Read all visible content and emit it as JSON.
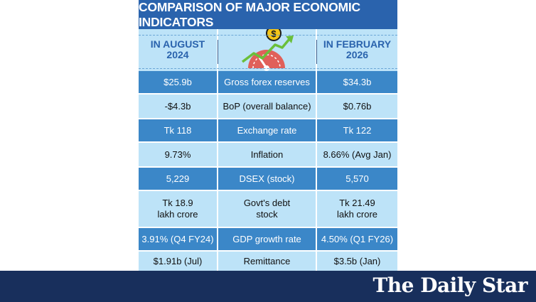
{
  "title": "COMPARISON OF MAJOR ECONOMIC INDICATORS",
  "headers": {
    "left": [
      "IN AUGUST",
      "2024"
    ],
    "right": [
      "IN FEBRUARY",
      "2026"
    ],
    "icon": "gauge-dollar-growth-icon"
  },
  "rows": [
    {
      "before": "$25.9b",
      "label": "Gross forex reserves",
      "after": "$34.3b"
    },
    {
      "before": "-$4.3b",
      "label": "BoP (overall balance)",
      "after": "$0.76b"
    },
    {
      "before": "Tk 118",
      "label": "Exchange rate",
      "after": "Tk 122"
    },
    {
      "before": "9.73%",
      "label": "Inflation",
      "after": "8.66% (Avg Jan)"
    },
    {
      "before": "5,229",
      "label": "DSEX (stock)",
      "after": "5,570"
    },
    {
      "before": [
        "Tk 18.9",
        "lakh crore"
      ],
      "label": [
        "Govt's debt",
        "stock"
      ],
      "after": [
        "Tk 21.49",
        "lakh crore"
      ]
    },
    {
      "before": "3.91% (Q4 FY24)",
      "label": "GDP growth rate",
      "after": "4.50% (Q1 FY26)"
    },
    {
      "before": "$1.91b (Jul)",
      "label": "Remittance",
      "after": "$3.5b (Jan)"
    }
  ],
  "brand": "The Daily Star",
  "colors": {
    "title_bg": "#2a63ad",
    "dark_row": "#3b87c8",
    "light_row": "#bde3f8",
    "footer": "#182f5c",
    "gauge": "#e0605a",
    "coin": "#f5c518"
  }
}
